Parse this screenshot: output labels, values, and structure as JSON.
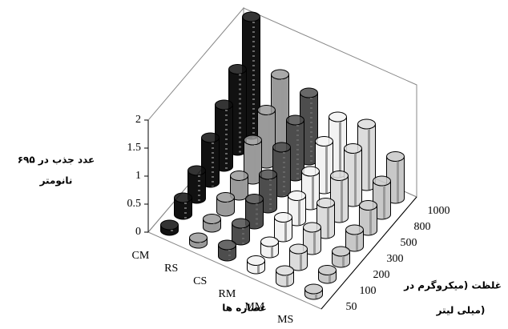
{
  "chart_data": {
    "type": "bar3d",
    "z_label": [
      "عدد جذب در ۶۹۵",
      "نانومتر"
    ],
    "x_label": "عصاره ها",
    "depth_label": [
      "غلظت (میکروگرم در",
      "میلی لیتر)"
    ],
    "depth_categories": [
      50,
      100,
      200,
      300,
      500,
      800,
      1000
    ],
    "series": [
      {
        "name": "CM",
        "color": "#111111",
        "values": [
          0.1,
          0.3,
          0.5,
          0.8,
          1.1,
          1.45,
          2.1
        ]
      },
      {
        "name": "RS",
        "color": "#9a9a9a",
        "values": [
          0.1,
          0.15,
          0.25,
          0.35,
          0.7,
          0.95,
          1.3
        ]
      },
      {
        "name": "CS",
        "color": "#4d4d4d",
        "values": [
          0.2,
          0.3,
          0.45,
          0.6,
          0.8,
          1.0,
          1.2
        ]
      },
      {
        "name": "RM",
        "color": "#f2f2f2",
        "values": [
          0.15,
          0.2,
          0.35,
          0.45,
          0.6,
          0.85,
          1.0
        ]
      },
      {
        "name": "MM",
        "color": "#dcdcdc",
        "values": [
          0.2,
          0.3,
          0.4,
          0.55,
          0.75,
          0.95,
          1.1
        ]
      },
      {
        "name": "MS",
        "color": "#c8c8c8",
        "values": [
          0.1,
          0.15,
          0.2,
          0.3,
          0.45,
          0.6,
          0.75
        ]
      }
    ],
    "zlim": [
      0,
      2
    ],
    "zticks": [
      0,
      0.5,
      1,
      1.5,
      2
    ]
  }
}
